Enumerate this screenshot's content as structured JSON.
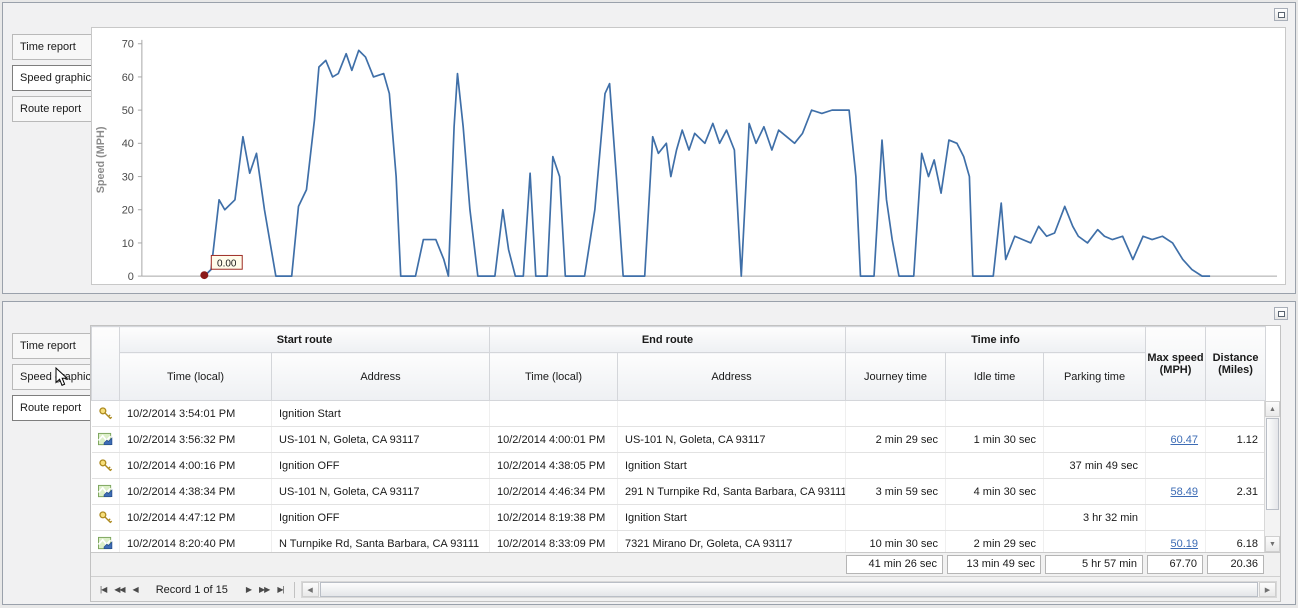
{
  "panels": {
    "top": {
      "tabs": [
        {
          "label": "Time report",
          "selected": false
        },
        {
          "label": "Speed graphic",
          "selected": true
        },
        {
          "label": "Route report",
          "selected": false
        }
      ]
    },
    "bottom": {
      "tabs": [
        {
          "label": "Time report",
          "selected": false
        },
        {
          "label": "Speed graphic",
          "selected": false
        },
        {
          "label": "Route report",
          "selected": true
        }
      ]
    }
  },
  "chart_data": {
    "type": "line",
    "title": "",
    "xlabel": "",
    "ylabel": "Speed (MPH)",
    "ylim": [
      0,
      70
    ],
    "yticks": [
      0,
      10,
      20,
      30,
      40,
      50,
      60,
      70
    ],
    "grid": false,
    "legend": "none",
    "line_color": "#3f6fa8",
    "marker_color": "#8b1a1a",
    "annotation": {
      "label": "0.00"
    },
    "x_unit": "fraction_of_plot_width",
    "points": [
      [
        0.055,
        0
      ],
      [
        0.061,
        2
      ],
      [
        0.068,
        23
      ],
      [
        0.073,
        20
      ],
      [
        0.082,
        23
      ],
      [
        0.089,
        42
      ],
      [
        0.095,
        31
      ],
      [
        0.101,
        37
      ],
      [
        0.108,
        20
      ],
      [
        0.118,
        0
      ],
      [
        0.132,
        0
      ],
      [
        0.138,
        21
      ],
      [
        0.145,
        26
      ],
      [
        0.152,
        47
      ],
      [
        0.156,
        63
      ],
      [
        0.162,
        65
      ],
      [
        0.168,
        60
      ],
      [
        0.173,
        61
      ],
      [
        0.18,
        67
      ],
      [
        0.185,
        62
      ],
      [
        0.191,
        68
      ],
      [
        0.197,
        66
      ],
      [
        0.204,
        60
      ],
      [
        0.213,
        61
      ],
      [
        0.218,
        55
      ],
      [
        0.224,
        30
      ],
      [
        0.228,
        0
      ],
      [
        0.241,
        0
      ],
      [
        0.248,
        11
      ],
      [
        0.259,
        11
      ],
      [
        0.266,
        5
      ],
      [
        0.27,
        0
      ],
      [
        0.275,
        45
      ],
      [
        0.278,
        61
      ],
      [
        0.283,
        45
      ],
      [
        0.289,
        20
      ],
      [
        0.296,
        0
      ],
      [
        0.311,
        0
      ],
      [
        0.318,
        20
      ],
      [
        0.323,
        8
      ],
      [
        0.329,
        0
      ],
      [
        0.336,
        0
      ],
      [
        0.342,
        31
      ],
      [
        0.347,
        0
      ],
      [
        0.357,
        0
      ],
      [
        0.362,
        36
      ],
      [
        0.368,
        30
      ],
      [
        0.373,
        0
      ],
      [
        0.39,
        0
      ],
      [
        0.399,
        20
      ],
      [
        0.408,
        55
      ],
      [
        0.412,
        58
      ],
      [
        0.418,
        30
      ],
      [
        0.424,
        0
      ],
      [
        0.443,
        0
      ],
      [
        0.45,
        42
      ],
      [
        0.455,
        37
      ],
      [
        0.462,
        40
      ],
      [
        0.466,
        30
      ],
      [
        0.471,
        38
      ],
      [
        0.476,
        44
      ],
      [
        0.482,
        38
      ],
      [
        0.487,
        43
      ],
      [
        0.496,
        40
      ],
      [
        0.503,
        46
      ],
      [
        0.509,
        40
      ],
      [
        0.515,
        44
      ],
      [
        0.522,
        38
      ],
      [
        0.528,
        0
      ],
      [
        0.535,
        46
      ],
      [
        0.541,
        40
      ],
      [
        0.548,
        45
      ],
      [
        0.555,
        38
      ],
      [
        0.561,
        44
      ],
      [
        0.568,
        42
      ],
      [
        0.575,
        40
      ],
      [
        0.582,
        43
      ],
      [
        0.59,
        50
      ],
      [
        0.599,
        49
      ],
      [
        0.608,
        50
      ],
      [
        0.617,
        50
      ],
      [
        0.623,
        50
      ],
      [
        0.629,
        30
      ],
      [
        0.633,
        0
      ],
      [
        0.645,
        0
      ],
      [
        0.652,
        41
      ],
      [
        0.656,
        23
      ],
      [
        0.661,
        11
      ],
      [
        0.667,
        0
      ],
      [
        0.68,
        0
      ],
      [
        0.687,
        37
      ],
      [
        0.693,
        30
      ],
      [
        0.698,
        35
      ],
      [
        0.704,
        25
      ],
      [
        0.711,
        41
      ],
      [
        0.718,
        40
      ],
      [
        0.724,
        36
      ],
      [
        0.729,
        30
      ],
      [
        0.732,
        0
      ],
      [
        0.75,
        0
      ],
      [
        0.757,
        22
      ],
      [
        0.761,
        5
      ],
      [
        0.769,
        12
      ],
      [
        0.776,
        11
      ],
      [
        0.783,
        10
      ],
      [
        0.79,
        15
      ],
      [
        0.797,
        12
      ],
      [
        0.804,
        13
      ],
      [
        0.813,
        21
      ],
      [
        0.82,
        15
      ],
      [
        0.825,
        12
      ],
      [
        0.833,
        10
      ],
      [
        0.842,
        14
      ],
      [
        0.848,
        12
      ],
      [
        0.855,
        11
      ],
      [
        0.864,
        12
      ],
      [
        0.873,
        5
      ],
      [
        0.882,
        12
      ],
      [
        0.89,
        11
      ],
      [
        0.899,
        12
      ],
      [
        0.908,
        10
      ],
      [
        0.917,
        5
      ],
      [
        0.925,
        2
      ],
      [
        0.934,
        0
      ],
      [
        0.941,
        0
      ]
    ]
  },
  "table": {
    "header": {
      "groups": [
        "Start route",
        "End route",
        "Time info"
      ],
      "sub": [
        "Time (local)",
        "Address",
        "Time (local)",
        "Address",
        "Journey time",
        "Idle time",
        "Parking time"
      ],
      "max_speed": [
        "Max speed",
        "(MPH)"
      ],
      "distance": [
        "Distance",
        "(Miles)"
      ]
    },
    "rows": [
      {
        "icon": "key",
        "start_time": "10/2/2014 3:54:01 PM",
        "start_address": "Ignition Start",
        "end_time": "",
        "end_address": "",
        "journey_time": "",
        "idle_time": "",
        "parking_time": "",
        "max_speed": "",
        "distance": ""
      },
      {
        "icon": "route",
        "start_time": "10/2/2014 3:56:32 PM",
        "start_address": "US-101 N, Goleta, CA 93117",
        "end_time": "10/2/2014 4:00:01 PM",
        "end_address": "US-101 N, Goleta, CA 93117",
        "journey_time": "2 min 29 sec",
        "idle_time": "1 min 30 sec",
        "parking_time": "",
        "max_speed": "60.47",
        "distance": "1.12"
      },
      {
        "icon": "key",
        "start_time": "10/2/2014 4:00:16 PM",
        "start_address": "Ignition OFF",
        "end_time": "10/2/2014 4:38:05 PM",
        "end_address": "Ignition Start",
        "journey_time": "",
        "idle_time": "",
        "parking_time": "37 min 49 sec",
        "max_speed": "",
        "distance": ""
      },
      {
        "icon": "route",
        "start_time": "10/2/2014 4:38:34 PM",
        "start_address": "US-101 N, Goleta, CA 93117",
        "end_time": "10/2/2014 4:46:34 PM",
        "end_address": "291 N Turnpike Rd, Santa Barbara, CA 93111",
        "journey_time": "3 min 59 sec",
        "idle_time": "4 min 30 sec",
        "parking_time": "",
        "max_speed": "58.49",
        "distance": "2.31"
      },
      {
        "icon": "key",
        "start_time": "10/2/2014 4:47:12 PM",
        "start_address": "Ignition OFF",
        "end_time": "10/2/2014 8:19:38 PM",
        "end_address": "Ignition Start",
        "journey_time": "",
        "idle_time": "",
        "parking_time": "3 hr 32 min",
        "max_speed": "",
        "distance": ""
      },
      {
        "icon": "route",
        "start_time": "10/2/2014 8:20:40 PM",
        "start_address": "N Turnpike Rd, Santa Barbara, CA 93111",
        "end_time": "10/2/2014 8:33:09 PM",
        "end_address": "7321 Mirano Dr, Goleta, CA 93117",
        "journey_time": "10 min 30 sec",
        "idle_time": "2 min 29 sec",
        "parking_time": "",
        "max_speed": "50.19",
        "distance": "6.18"
      }
    ],
    "summary": {
      "journey_time": "41 min 26 sec",
      "idle_time": "13 min 49 sec",
      "parking_time": "5 hr 57 min",
      "max_speed": "67.70",
      "distance": "20.36"
    },
    "navigator": {
      "record_text": "Record 1 of 15",
      "buttons": {
        "first": "|◀",
        "prev_page": "◀◀",
        "prev": "◀",
        "next": "▶",
        "next_page": "▶▶",
        "last": "▶|"
      }
    }
  },
  "scrollbars": {
    "up": "▲",
    "down": "▼",
    "left": "◀",
    "right": "▶"
  }
}
